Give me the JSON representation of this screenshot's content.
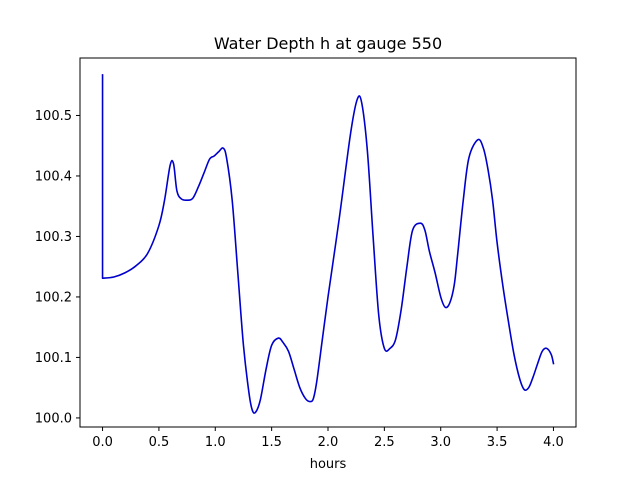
{
  "chart_data": {
    "type": "line",
    "title": "Water Depth h at gauge 550",
    "xlabel": "hours",
    "ylabel": "",
    "xlim": [
      -0.2,
      4.2
    ],
    "ylim": [
      99.985,
      100.595
    ],
    "xticks": [
      0.0,
      0.5,
      1.0,
      1.5,
      2.0,
      2.5,
      3.0,
      3.5,
      4.0
    ],
    "xtick_labels": [
      "0.0",
      "0.5",
      "1.0",
      "1.5",
      "2.0",
      "2.5",
      "3.0",
      "3.5",
      "4.0"
    ],
    "yticks": [
      100.0,
      100.1,
      100.2,
      100.3,
      100.4,
      100.5
    ],
    "ytick_labels": [
      "100.0",
      "100.1",
      "100.2",
      "100.3",
      "100.4",
      "100.5"
    ],
    "grid": false,
    "series": [
      {
        "color": "#0000cc",
        "x": [
          0.0,
          0.0,
          0.0,
          0.1,
          0.2,
          0.3,
          0.4,
          0.5,
          0.55,
          0.6,
          0.63,
          0.66,
          0.7,
          0.75,
          0.8,
          0.85,
          0.9,
          0.95,
          0.99,
          1.03,
          1.07,
          1.1,
          1.15,
          1.2,
          1.25,
          1.3,
          1.33,
          1.36,
          1.4,
          1.45,
          1.5,
          1.56,
          1.6,
          1.65,
          1.7,
          1.75,
          1.8,
          1.84,
          1.87,
          1.9,
          1.95,
          2.0,
          2.1,
          2.2,
          2.26,
          2.3,
          2.35,
          2.4,
          2.45,
          2.5,
          2.55,
          2.6,
          2.65,
          2.7,
          2.75,
          2.82,
          2.86,
          2.9,
          2.95,
          3.0,
          3.04,
          3.08,
          3.12,
          3.15,
          3.2,
          3.25,
          3.33,
          3.38,
          3.42,
          3.46,
          3.5,
          3.55,
          3.6,
          3.65,
          3.7,
          3.74,
          3.78,
          3.82,
          3.86,
          3.9,
          3.94,
          3.98,
          4.0
        ],
        "values": [
          100.567,
          100.3,
          100.231,
          100.233,
          100.24,
          100.252,
          100.272,
          100.318,
          100.36,
          100.418,
          100.42,
          100.375,
          100.362,
          100.36,
          100.363,
          100.382,
          100.405,
          100.428,
          100.433,
          100.44,
          100.446,
          100.43,
          100.36,
          100.24,
          100.12,
          100.04,
          100.012,
          100.01,
          100.03,
          100.08,
          100.12,
          100.132,
          100.125,
          100.11,
          100.08,
          100.05,
          100.032,
          100.027,
          100.032,
          100.06,
          100.13,
          100.2,
          100.33,
          100.47,
          100.527,
          100.52,
          100.44,
          100.3,
          100.17,
          100.115,
          100.115,
          100.13,
          100.18,
          100.25,
          100.31,
          100.322,
          100.31,
          100.275,
          100.24,
          100.2,
          100.183,
          100.19,
          100.22,
          100.27,
          100.36,
          100.43,
          100.46,
          100.445,
          100.41,
          100.36,
          100.29,
          100.22,
          100.16,
          100.105,
          100.065,
          100.047,
          100.05,
          100.068,
          100.09,
          100.11,
          100.115,
          100.105,
          100.09
        ]
      }
    ]
  }
}
